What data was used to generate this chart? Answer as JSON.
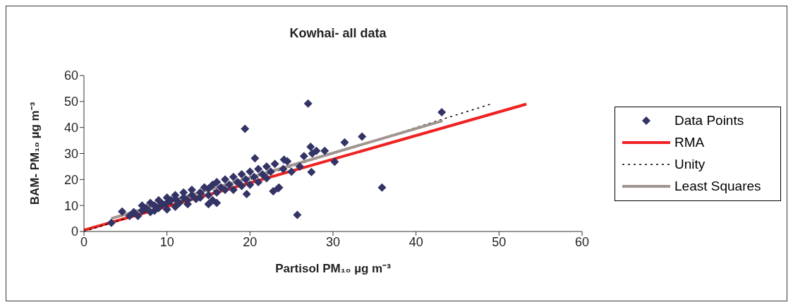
{
  "chart_data": {
    "type": "scatter",
    "title": "Kowhai- all data",
    "xlabel": "Partisol  PM₁₀ µg m⁻³",
    "ylabel": "BAM- PM₁₀ µg m⁻³",
    "xlim": [
      0,
      60
    ],
    "xticks": [
      0,
      10,
      20,
      30,
      40,
      50,
      60
    ],
    "ylim": [
      0,
      60
    ],
    "yticks": [
      0,
      10,
      20,
      30,
      40,
      50,
      60
    ],
    "grid": false,
    "legend": "right",
    "series": [
      {
        "name": "Data Points",
        "marker": "diamond",
        "color": "#333366",
        "x": [
          3.3,
          4.6,
          5.5,
          6,
          6.5,
          7,
          7,
          7.5,
          8,
          8,
          8.5,
          8.5,
          9,
          9,
          9.5,
          10,
          10,
          10,
          10.5,
          11,
          11,
          11,
          11.5,
          12,
          12,
          12.5,
          12.5,
          13,
          13,
          13.5,
          14,
          14,
          14.5,
          15,
          15,
          15,
          15.5,
          15.5,
          16,
          16,
          16,
          16.5,
          17,
          17,
          17.5,
          18,
          18,
          18.5,
          19,
          19,
          19.4,
          19.5,
          19.6,
          20,
          20,
          20.5,
          20.6,
          21,
          21,
          21.5,
          22,
          22,
          22.5,
          22.8,
          23,
          23.4,
          23.5,
          24,
          24.1,
          24.5,
          25,
          25.7,
          26,
          26.5,
          27,
          27.3,
          27.4,
          27.5,
          28,
          29,
          30.2,
          31.4,
          33.5,
          35.9,
          43.1
        ],
        "values": [
          3.3,
          7.7,
          6,
          7.5,
          6,
          8,
          10,
          9,
          7.5,
          11,
          8,
          10,
          9,
          12,
          10.5,
          8.5,
          11,
          13,
          12,
          9.5,
          12.5,
          14,
          11,
          13,
          15,
          10.5,
          12,
          14,
          16,
          12.5,
          13,
          15,
          17,
          10.5,
          14,
          16.5,
          12,
          18,
          11,
          15,
          19,
          17,
          16,
          20,
          18,
          16,
          21,
          19,
          17.5,
          22,
          39.5,
          20,
          14.4,
          18,
          23,
          21,
          28.2,
          19,
          24,
          22,
          20.5,
          25,
          23,
          15.5,
          26,
          16.6,
          16.9,
          24,
          27.6,
          27,
          23,
          6.4,
          25,
          29,
          49.2,
          32.6,
          22.9,
          30,
          31,
          31,
          26.8,
          34.3,
          36.5,
          16.9,
          45.9
        ]
      },
      {
        "name": "RMA",
        "type": "line",
        "color": "#ee2222",
        "line_style": "solid",
        "x": [
          0,
          53.3
        ],
        "values": [
          0.5,
          49
        ]
      },
      {
        "name": "Unity",
        "type": "line",
        "color": "#000000",
        "line_style": "dotted",
        "x": [
          0,
          48.9
        ],
        "values": [
          0,
          48.9
        ]
      },
      {
        "name": "Least Squares",
        "type": "line",
        "color": "#a09590",
        "line_style": "solid",
        "x": [
          3.3,
          43.2
        ],
        "values": [
          5,
          42.6
        ]
      }
    ]
  }
}
